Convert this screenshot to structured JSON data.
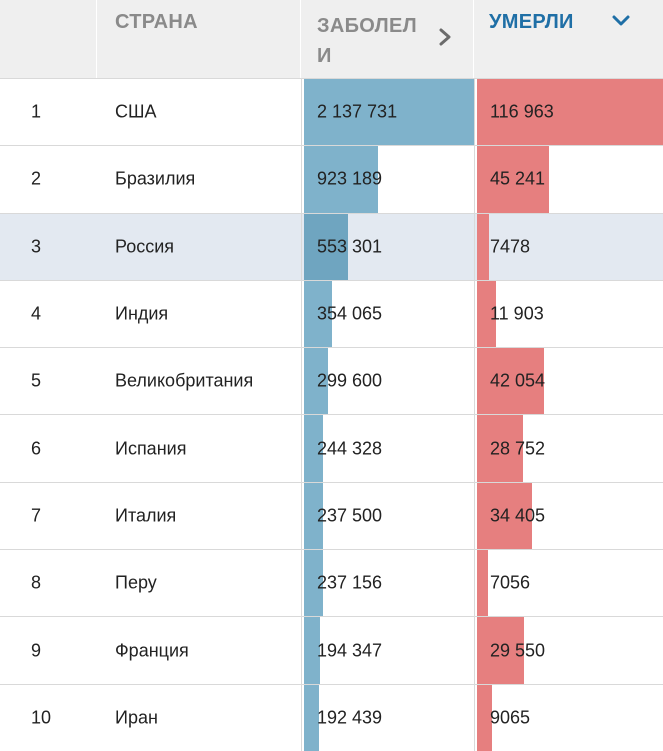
{
  "header": {
    "country_label": "СТРАНА",
    "cases_label": "ЗАБОЛЕЛ И",
    "deaths_label": "УМЕРЛИ"
  },
  "rows": [
    {
      "rank": "1",
      "country": "США",
      "cases": "2 137 731",
      "deaths": "116 963",
      "cases_frac": 1.0,
      "deaths_frac": 1.0
    },
    {
      "rank": "2",
      "country": "Бразилия",
      "cases": "923 189",
      "deaths": "45 241",
      "cases_frac": 0.432,
      "deaths_frac": 0.387
    },
    {
      "rank": "3",
      "country": "Россия",
      "cases": "553 301",
      "deaths": "7478",
      "cases_frac": 0.259,
      "deaths_frac": 0.064
    },
    {
      "rank": "4",
      "country": "Индия",
      "cases": "354 065",
      "deaths": "11 903",
      "cases_frac": 0.166,
      "deaths_frac": 0.102
    },
    {
      "rank": "5",
      "country": "Великобритания",
      "cases": "299 600",
      "deaths": "42 054",
      "cases_frac": 0.14,
      "deaths_frac": 0.36
    },
    {
      "rank": "6",
      "country": "Испания",
      "cases": "244 328",
      "deaths": "28 752",
      "cases_frac": 0.114,
      "deaths_frac": 0.246
    },
    {
      "rank": "7",
      "country": "Италия",
      "cases": "237 500",
      "deaths": "34 405",
      "cases_frac": 0.111,
      "deaths_frac": 0.294
    },
    {
      "rank": "8",
      "country": "Перу",
      "cases": "237 156",
      "deaths": "7056",
      "cases_frac": 0.111,
      "deaths_frac": 0.06
    },
    {
      "rank": "9",
      "country": "Франция",
      "cases": "194 347",
      "deaths": "29 550",
      "cases_frac": 0.091,
      "deaths_frac": 0.253
    },
    {
      "rank": "10",
      "country": "Иран",
      "cases": "192 439",
      "deaths": "9065",
      "cases_frac": 0.09,
      "deaths_frac": 0.078
    }
  ],
  "highlighted_rank": "3",
  "sort": {
    "active_column": "deaths",
    "direction": "descending"
  },
  "colors": {
    "cases_bar": "#7fb2cb",
    "deaths_bar": "#e67f7f",
    "active_header": "#1f6fa6",
    "header_bg": "#efefef",
    "highlight_row": "#e3e9f1"
  },
  "icons": {
    "cases_sort": "chevron-right-icon",
    "deaths_sort": "chevron-down-icon"
  }
}
